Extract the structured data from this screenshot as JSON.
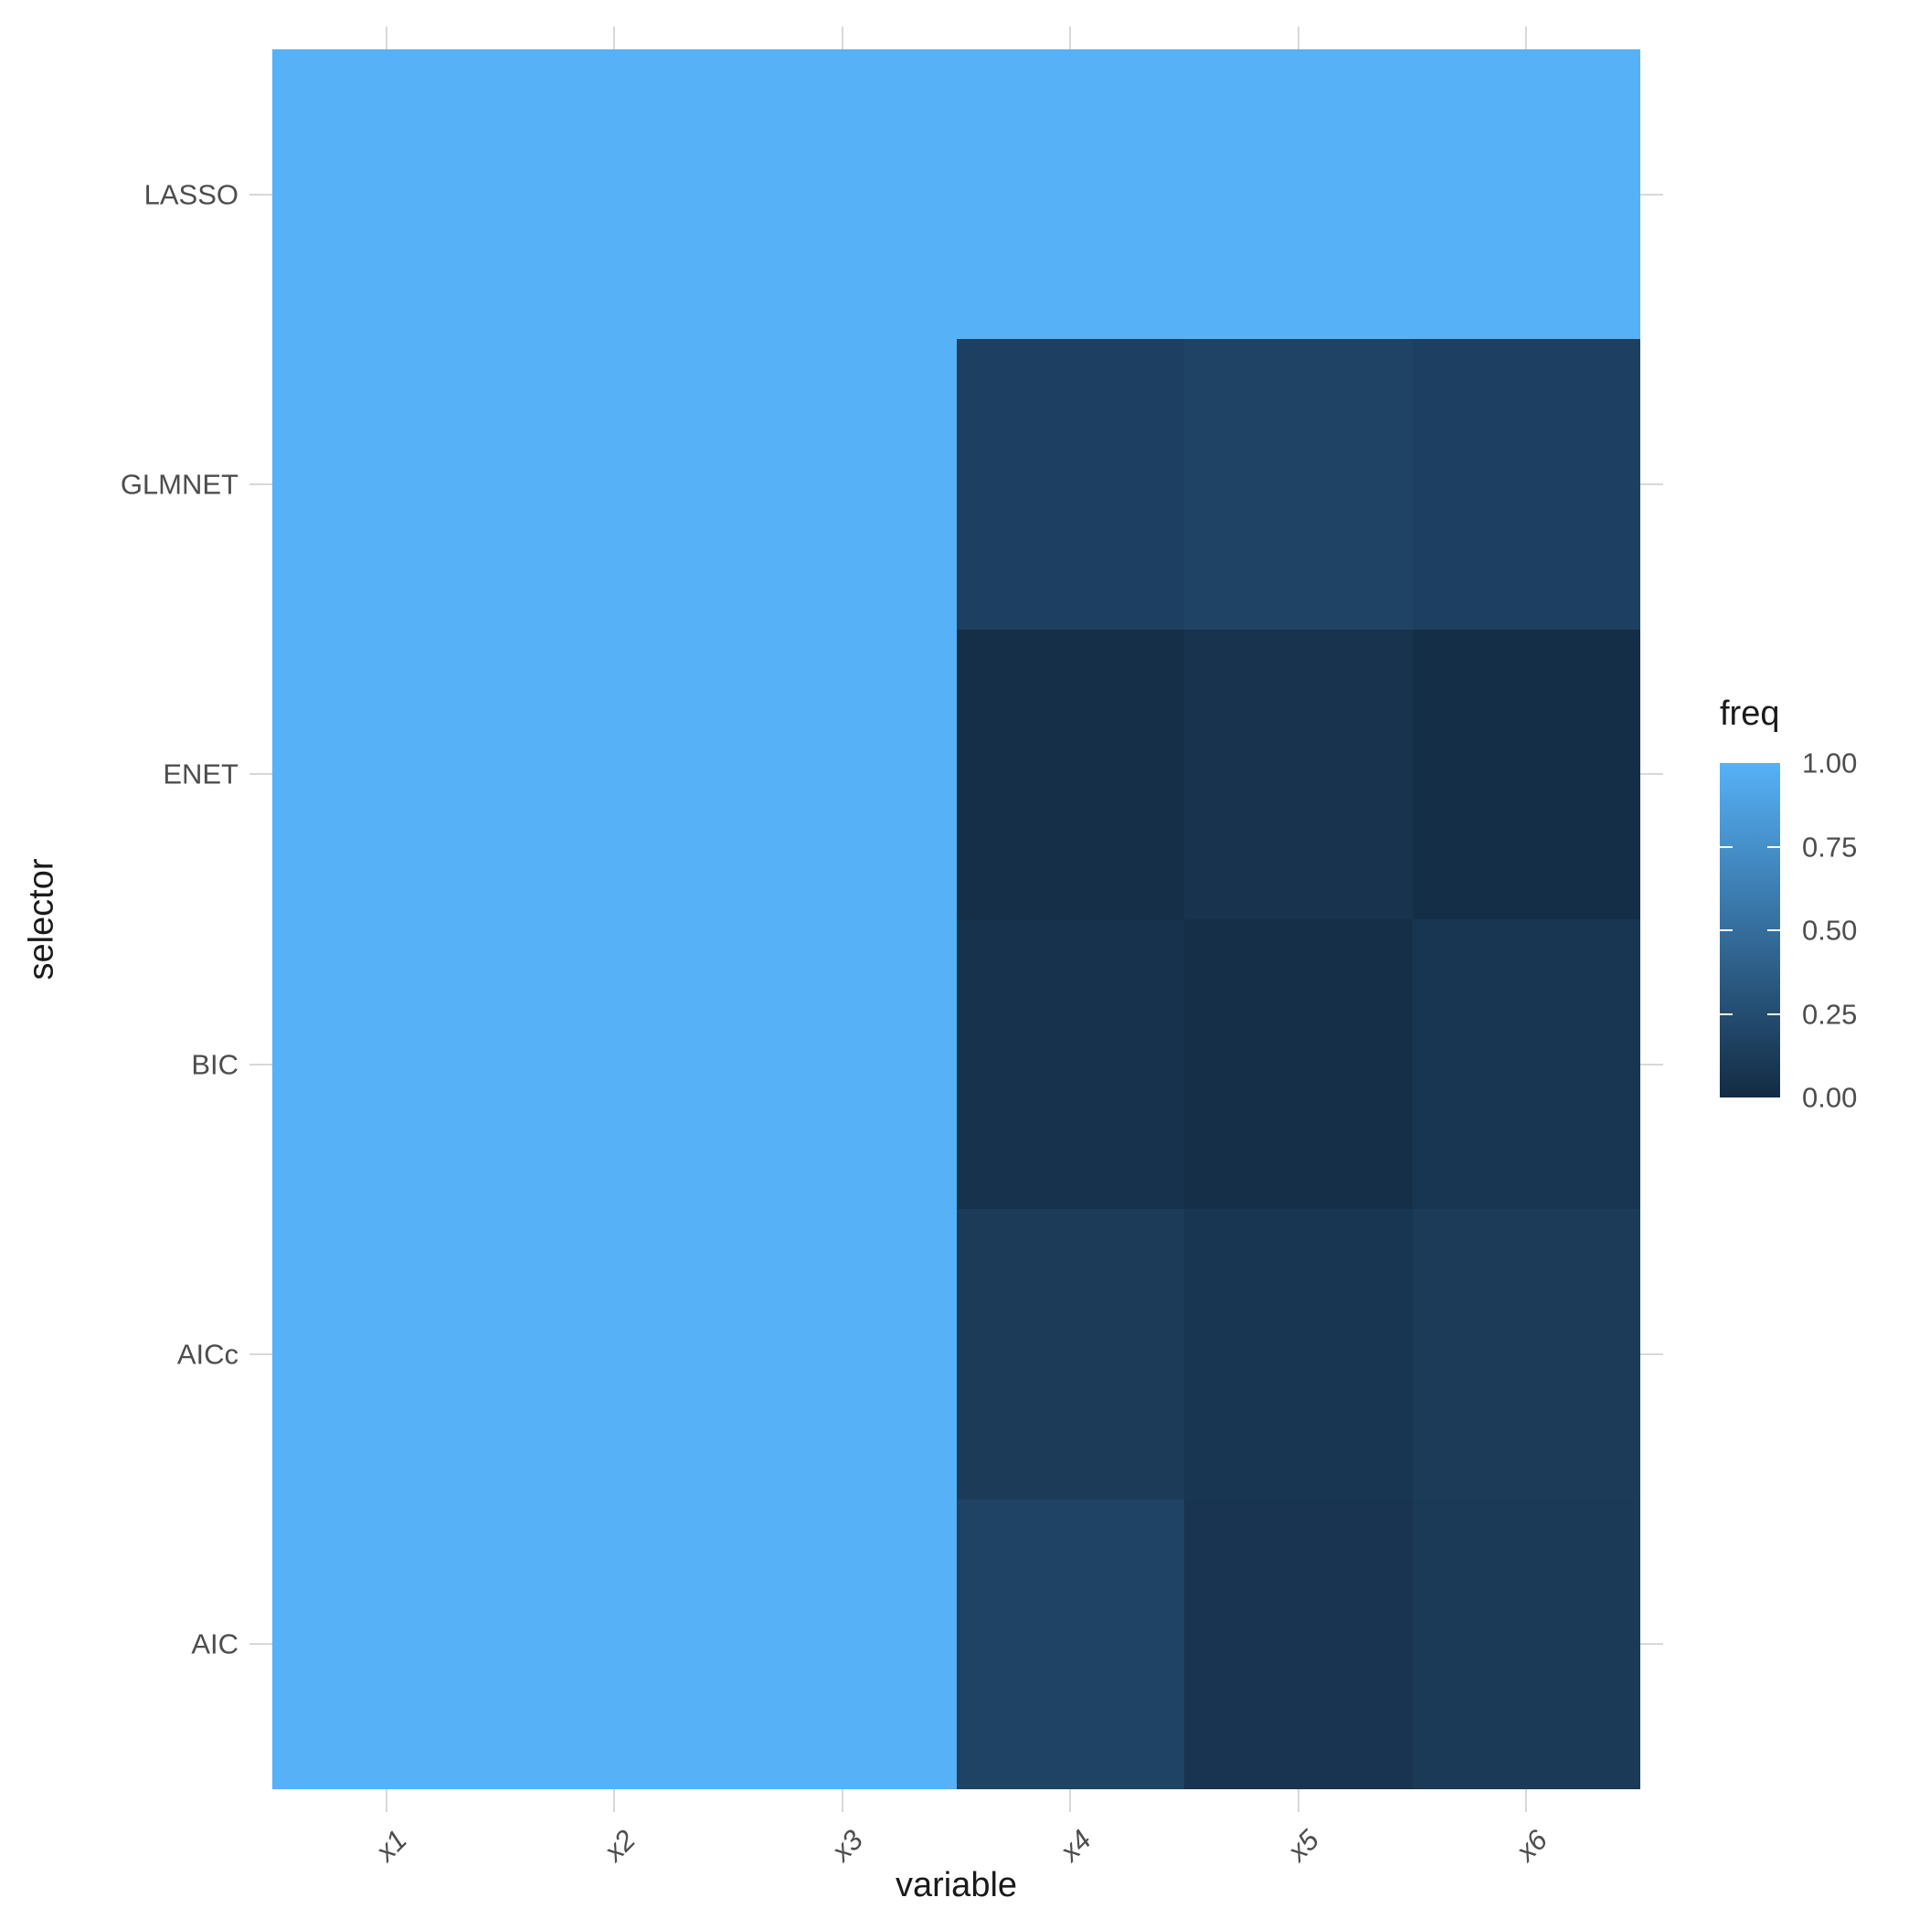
{
  "chart_data": {
    "type": "heatmap",
    "title": "",
    "xlabel": "variable",
    "ylabel": "selector",
    "x_categories": [
      "x1",
      "x2",
      "x3",
      "x4",
      "x5",
      "x6"
    ],
    "y_categories": [
      "LASSO",
      "GLMNET",
      "ENET",
      "BIC",
      "AICc",
      "AIC"
    ],
    "legend": {
      "title": "freq",
      "ticks": [
        "1.00",
        "0.75",
        "0.50",
        "0.25",
        "0.00"
      ],
      "limits": [
        0,
        1
      ],
      "position": "right",
      "low_color": "#132B43",
      "high_color": "#56B1F7"
    },
    "grid": true,
    "series": [
      {
        "name": "LASSO",
        "values": [
          1,
          1,
          1,
          1.0,
          1.0,
          1.0
        ]
      },
      {
        "name": "GLMNET",
        "values": [
          1,
          1,
          1,
          0.16,
          0.18,
          0.16
        ]
      },
      {
        "name": "ENET",
        "values": [
          1,
          1,
          1,
          0.03,
          0.06,
          0.02
        ]
      },
      {
        "name": "BIC",
        "values": [
          1,
          1,
          1,
          0.05,
          0.03,
          0.08
        ]
      },
      {
        "name": "AICc",
        "values": [
          1,
          1,
          1,
          0.12,
          0.08,
          0.12
        ]
      },
      {
        "name": "AIC",
        "values": [
          1,
          1,
          1,
          0.18,
          0.07,
          0.11
        ]
      }
    ]
  }
}
